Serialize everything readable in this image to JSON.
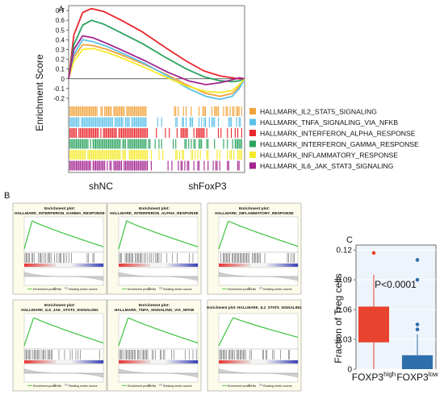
{
  "panels": {
    "A": {
      "label": "A",
      "chart_data": {
        "type": "line",
        "ylabel": "Enrichment Score",
        "xlabel": "",
        "ylim": [
          -0.25,
          0.75
        ],
        "yticks": [
          "0.7",
          "0.6",
          "0.5",
          "0.4",
          "0.3",
          "0.2",
          "0.1",
          "0",
          "-0.1",
          "-0.2"
        ],
        "group_labels": [
          "shNC",
          "shFoxP3"
        ],
        "zero_line": true,
        "series": [
          {
            "name": "HALLMARK_IL2_STAT5_SIGNALING",
            "color": "#f2a23a",
            "x": [
              0,
              0.03,
              0.08,
              0.14,
              0.22,
              0.32,
              0.44,
              0.56,
              0.68,
              0.78,
              0.86,
              0.93,
              0.97,
              1.0
            ],
            "y": [
              0,
              0.22,
              0.35,
              0.34,
              0.3,
              0.23,
              0.14,
              0.04,
              -0.07,
              -0.15,
              -0.18,
              -0.15,
              -0.08,
              0
            ]
          },
          {
            "name": "HALLMARK_TNFA_SIGNALING_VIA_NFKB",
            "color": "#5bc0e8",
            "x": [
              0,
              0.03,
              0.08,
              0.14,
              0.22,
              0.32,
              0.44,
              0.56,
              0.68,
              0.78,
              0.86,
              0.93,
              0.97,
              1.0
            ],
            "y": [
              0,
              0.25,
              0.4,
              0.38,
              0.33,
              0.25,
              0.15,
              0.03,
              -0.1,
              -0.18,
              -0.21,
              -0.18,
              -0.1,
              0
            ]
          },
          {
            "name": "HALLMARK_INTERFERON_ALPHA_RESPONSE",
            "color": "#e8262b",
            "x": [
              0,
              0.03,
              0.08,
              0.13,
              0.2,
              0.3,
              0.42,
              0.55,
              0.67,
              0.77,
              0.86,
              0.93,
              0.97,
              1.0
            ],
            "y": [
              0,
              0.45,
              0.68,
              0.72,
              0.69,
              0.6,
              0.48,
              0.32,
              0.18,
              0.08,
              0.03,
              0.01,
              0.0,
              0
            ]
          },
          {
            "name": "HALLMARK_INTERFERON_GAMMA_RESPONSE",
            "color": "#2aa35f",
            "x": [
              0,
              0.03,
              0.08,
              0.13,
              0.2,
              0.3,
              0.42,
              0.55,
              0.67,
              0.77,
              0.86,
              0.93,
              0.97,
              1.0
            ],
            "y": [
              0,
              0.35,
              0.55,
              0.6,
              0.56,
              0.47,
              0.36,
              0.22,
              0.1,
              0.02,
              -0.02,
              -0.03,
              -0.02,
              0
            ]
          },
          {
            "name": "HALLMARK_INFLAMMATORY_RESPONSE",
            "color": "#f4ea2a",
            "x": [
              0,
              0.03,
              0.08,
              0.14,
              0.22,
              0.32,
              0.44,
              0.56,
              0.68,
              0.78,
              0.86,
              0.93,
              0.97,
              1.0
            ],
            "y": [
              0,
              0.18,
              0.3,
              0.31,
              0.27,
              0.2,
              0.11,
              0.01,
              -0.08,
              -0.13,
              -0.14,
              -0.12,
              -0.06,
              0
            ]
          },
          {
            "name": "HALLMARK_IL6_JAK_STAT3_SIGNALING",
            "color": "#a3238f",
            "x": [
              0,
              0.03,
              0.08,
              0.14,
              0.22,
              0.32,
              0.44,
              0.56,
              0.68,
              0.78,
              0.86,
              0.93,
              0.97,
              1.0
            ],
            "y": [
              0,
              0.3,
              0.44,
              0.42,
              0.36,
              0.28,
              0.18,
              0.07,
              -0.02,
              -0.06,
              -0.04,
              -0.01,
              0.01,
              0
            ]
          }
        ],
        "legend": [
          "HALLMARK_IL2_STAT5_SIGNALING",
          "HALLMARK_TNFA_SIGNALING_VIA_NFKB",
          "HALLMARK_INTERFERON_ALPHA_RESPONSE",
          "HALLMARK_INTERFERON_GAMMA_RESPONSE",
          "HALLMARK_INFLAMMATORY_RESPONSE",
          "HALLMARK_IL6_JAK_STAT3_SIGNALING"
        ],
        "legend_placement": "right"
      }
    },
    "B": {
      "label": "B",
      "chart_data": [
        {
          "type": "line",
          "title_top": "Enrichment plot:",
          "title": "HALLMARK_INTERFERON_GAMMA_RESPONSE",
          "peak_position": 0.1,
          "final_value": 0.08
        },
        {
          "type": "line",
          "title_top": "Enrichment plot:",
          "title": "HALLMARK_INTERFERON_ALPHA_RESPONSE",
          "peak_position": 0.1,
          "final_value": 0.08
        },
        {
          "type": "line",
          "title_top": "Enrichment plot:",
          "title": "HALLMARK_INFLAMMATORY_RESPONSE",
          "peak_position": 0.12,
          "final_value": 0.1
        },
        {
          "type": "line",
          "title_top": "Enrichment plot:",
          "title": "HALLMARK_IL6_JAK_STAT3_SIGNALING",
          "peak_position": 0.12,
          "final_value": 0.1
        },
        {
          "type": "line",
          "title_top": "Enrichment plot:",
          "title": "HALLMARK_TNFA_SIGNALING_VIA_NFKB",
          "peak_position": 0.12,
          "final_value": 0.1
        },
        {
          "type": "line",
          "title_top": "",
          "title": "Enrichment plot: HALLMARK_IL2_STAT5_SIGNALING",
          "peak_position": 0.18,
          "final_value": 0.3
        }
      ],
      "legend_labels": [
        "Enrichment profile",
        "Hits",
        "Ranking metric scores"
      ]
    },
    "C": {
      "label": "C",
      "chart_data": {
        "type": "box",
        "ylabel": "Fraction of Treg cells",
        "ylim": [
          0,
          0.125
        ],
        "yticks": [
          0,
          0.03,
          0.06,
          0.09,
          0.12
        ],
        "ytick_labels": [
          "0",
          "0.03",
          "0.06",
          "0.09",
          "0.12"
        ],
        "categories": [
          "FOXP3high",
          "FOXP3low"
        ],
        "category_main": [
          "FOXP3",
          "FOXP3"
        ],
        "category_sup": [
          "high",
          "low"
        ],
        "annotation": "P<0.0001",
        "boxes": [
          {
            "name": "FOXP3high",
            "color": "#e8432e",
            "q1": 0.027,
            "median": 0.05,
            "q3": 0.063,
            "whisker_low": 0.0,
            "whisker_high": 0.095,
            "outliers": [
              0.117
            ]
          },
          {
            "name": "FOXP3low",
            "color": "#2f6fad",
            "q1": 0.0,
            "median": 0.005,
            "q3": 0.014,
            "whisker_low": 0.0,
            "whisker_high": 0.035,
            "outliers": [
              0.04,
              0.045,
              0.09,
              0.11
            ]
          }
        ],
        "background": "#eef4fb"
      }
    }
  }
}
